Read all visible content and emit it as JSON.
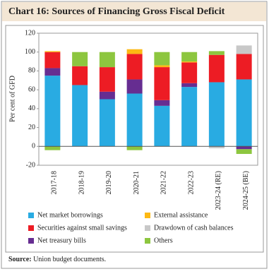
{
  "chart_data": {
    "type": "stacked_bar",
    "title": "Chart 16: Sources of Financing Gross Fiscal Deficit",
    "y_label": "Per cent of GFD",
    "categories": [
      "2017-18",
      "2018-19",
      "2019-20",
      "2020-21",
      "2021-22",
      "2022-23",
      "2023-24 (RE)",
      "2024-25 (BE)"
    ],
    "series": [
      {
        "name": "Net market borrowings",
        "color": "#29abe2",
        "values": [
          75,
          65,
          50,
          56,
          43,
          63,
          68,
          71
        ]
      },
      {
        "name": "Net treasury bills",
        "color": "#662d91",
        "values": [
          8,
          0,
          8,
          15,
          6,
          4,
          0,
          -3
        ]
      },
      {
        "name": "Securities against small savings",
        "color": "#ed1c24",
        "values": [
          17,
          20,
          26,
          27,
          35,
          22,
          29,
          27
        ]
      },
      {
        "name": "External assistance",
        "color": "#fdb913",
        "values": [
          1,
          0,
          0,
          5,
          2,
          1,
          0,
          0
        ]
      },
      {
        "name": "Drawdown of cash balances",
        "color": "#c8c8c8",
        "values": [
          0,
          0,
          0,
          0,
          0,
          0,
          -2,
          9
        ]
      },
      {
        "name": "Others",
        "color": "#8dc63f",
        "values": [
          -4,
          15,
          16,
          -4,
          14,
          10,
          4,
          -5
        ]
      }
    ],
    "ylim": [
      -20,
      120
    ],
    "yticks": [
      -20,
      0,
      20,
      40,
      60,
      80,
      100,
      120
    ],
    "grid": false,
    "source_label": "Source:",
    "source_text": "Union budget documents."
  }
}
